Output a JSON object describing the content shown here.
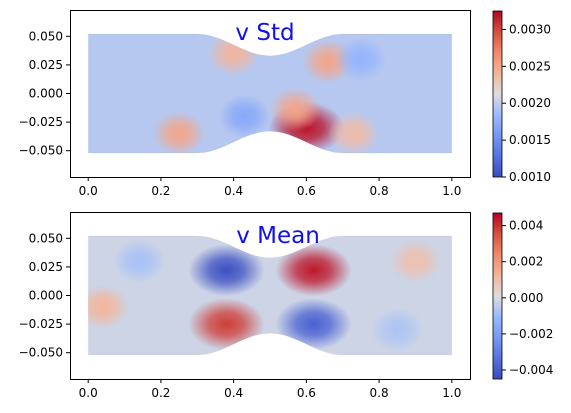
{
  "chart_data": [
    {
      "type": "heatmap",
      "title": "v Std",
      "xlabel": "",
      "ylabel": "",
      "xlim": [
        -0.05,
        1.05
      ],
      "ylim": [
        -0.073,
        0.073
      ],
      "xticks": [
        0.0,
        0.2,
        0.4,
        0.6,
        0.8,
        1.0
      ],
      "xtick_labels": [
        "0.0",
        "0.2",
        "0.4",
        "0.6",
        "0.8",
        "1.0"
      ],
      "yticks": [
        0.05,
        0.025,
        0.0,
        -0.025,
        -0.05
      ],
      "ytick_labels": [
        "0.050",
        "0.025",
        "0.000",
        "−0.025",
        "−0.050"
      ],
      "colorbar": {
        "colormap": "coolwarm",
        "range": [
          0.001,
          0.00325
        ],
        "ticks": [
          0.003,
          0.0025,
          0.002,
          0.0015,
          0.001
        ],
        "tick_labels": [
          "0.0030",
          "0.0025",
          "0.0020",
          "0.0015",
          "0.0010"
        ]
      },
      "domain": {
        "x_range": [
          0.0,
          1.0
        ],
        "half_height": 0.052,
        "throat_half_height": 0.033,
        "constriction_x": [
          0.3,
          0.7
        ]
      },
      "baseline": 0.00196,
      "features": [
        {
          "x": 0.6,
          "y": -0.03,
          "value": 0.0032
        },
        {
          "x": 0.57,
          "y": -0.014,
          "value": 0.0025
        },
        {
          "x": 0.25,
          "y": -0.035,
          "value": 0.0025
        },
        {
          "x": 0.4,
          "y": 0.035,
          "value": 0.0024
        },
        {
          "x": 0.66,
          "y": 0.028,
          "value": 0.0025
        },
        {
          "x": 0.73,
          "y": -0.035,
          "value": 0.00235
        },
        {
          "x": 0.43,
          "y": -0.02,
          "value": 0.0017
        },
        {
          "x": 0.75,
          "y": 0.03,
          "value": 0.0018
        }
      ]
    },
    {
      "type": "heatmap",
      "title": "v Mean",
      "xlabel": "",
      "ylabel": "",
      "xlim": [
        -0.05,
        1.05
      ],
      "ylim": [
        -0.073,
        0.073
      ],
      "xticks": [
        0.0,
        0.2,
        0.4,
        0.6,
        0.8,
        1.0
      ],
      "xtick_labels": [
        "0.0",
        "0.2",
        "0.4",
        "0.6",
        "0.8",
        "1.0"
      ],
      "yticks": [
        0.05,
        0.025,
        0.0,
        -0.025,
        -0.05
      ],
      "ytick_labels": [
        "0.050",
        "0.025",
        "0.000",
        "−0.025",
        "−0.050"
      ],
      "colorbar": {
        "colormap": "coolwarm",
        "range": [
          -0.0045,
          0.0047
        ],
        "ticks": [
          0.004,
          0.002,
          0.0,
          -0.002,
          -0.004
        ],
        "tick_labels": [
          "0.004",
          "0.002",
          "0.000",
          "−0.002",
          "−0.004"
        ]
      },
      "domain": {
        "x_range": [
          0.0,
          1.0
        ],
        "half_height": 0.052,
        "throat_half_height": 0.033,
        "constriction_x": [
          0.3,
          0.7
        ]
      },
      "baseline": -0.0002,
      "features": [
        {
          "x": 0.38,
          "y": 0.022,
          "value": -0.0044
        },
        {
          "x": 0.62,
          "y": 0.022,
          "value": 0.0044
        },
        {
          "x": 0.38,
          "y": -0.025,
          "value": 0.0038
        },
        {
          "x": 0.62,
          "y": -0.025,
          "value": -0.0039
        },
        {
          "x": 0.04,
          "y": -0.01,
          "value": 0.0012
        },
        {
          "x": 0.9,
          "y": 0.03,
          "value": 0.0009
        },
        {
          "x": 0.14,
          "y": 0.03,
          "value": -0.0008
        },
        {
          "x": 0.85,
          "y": -0.03,
          "value": -0.0007
        }
      ]
    }
  ]
}
